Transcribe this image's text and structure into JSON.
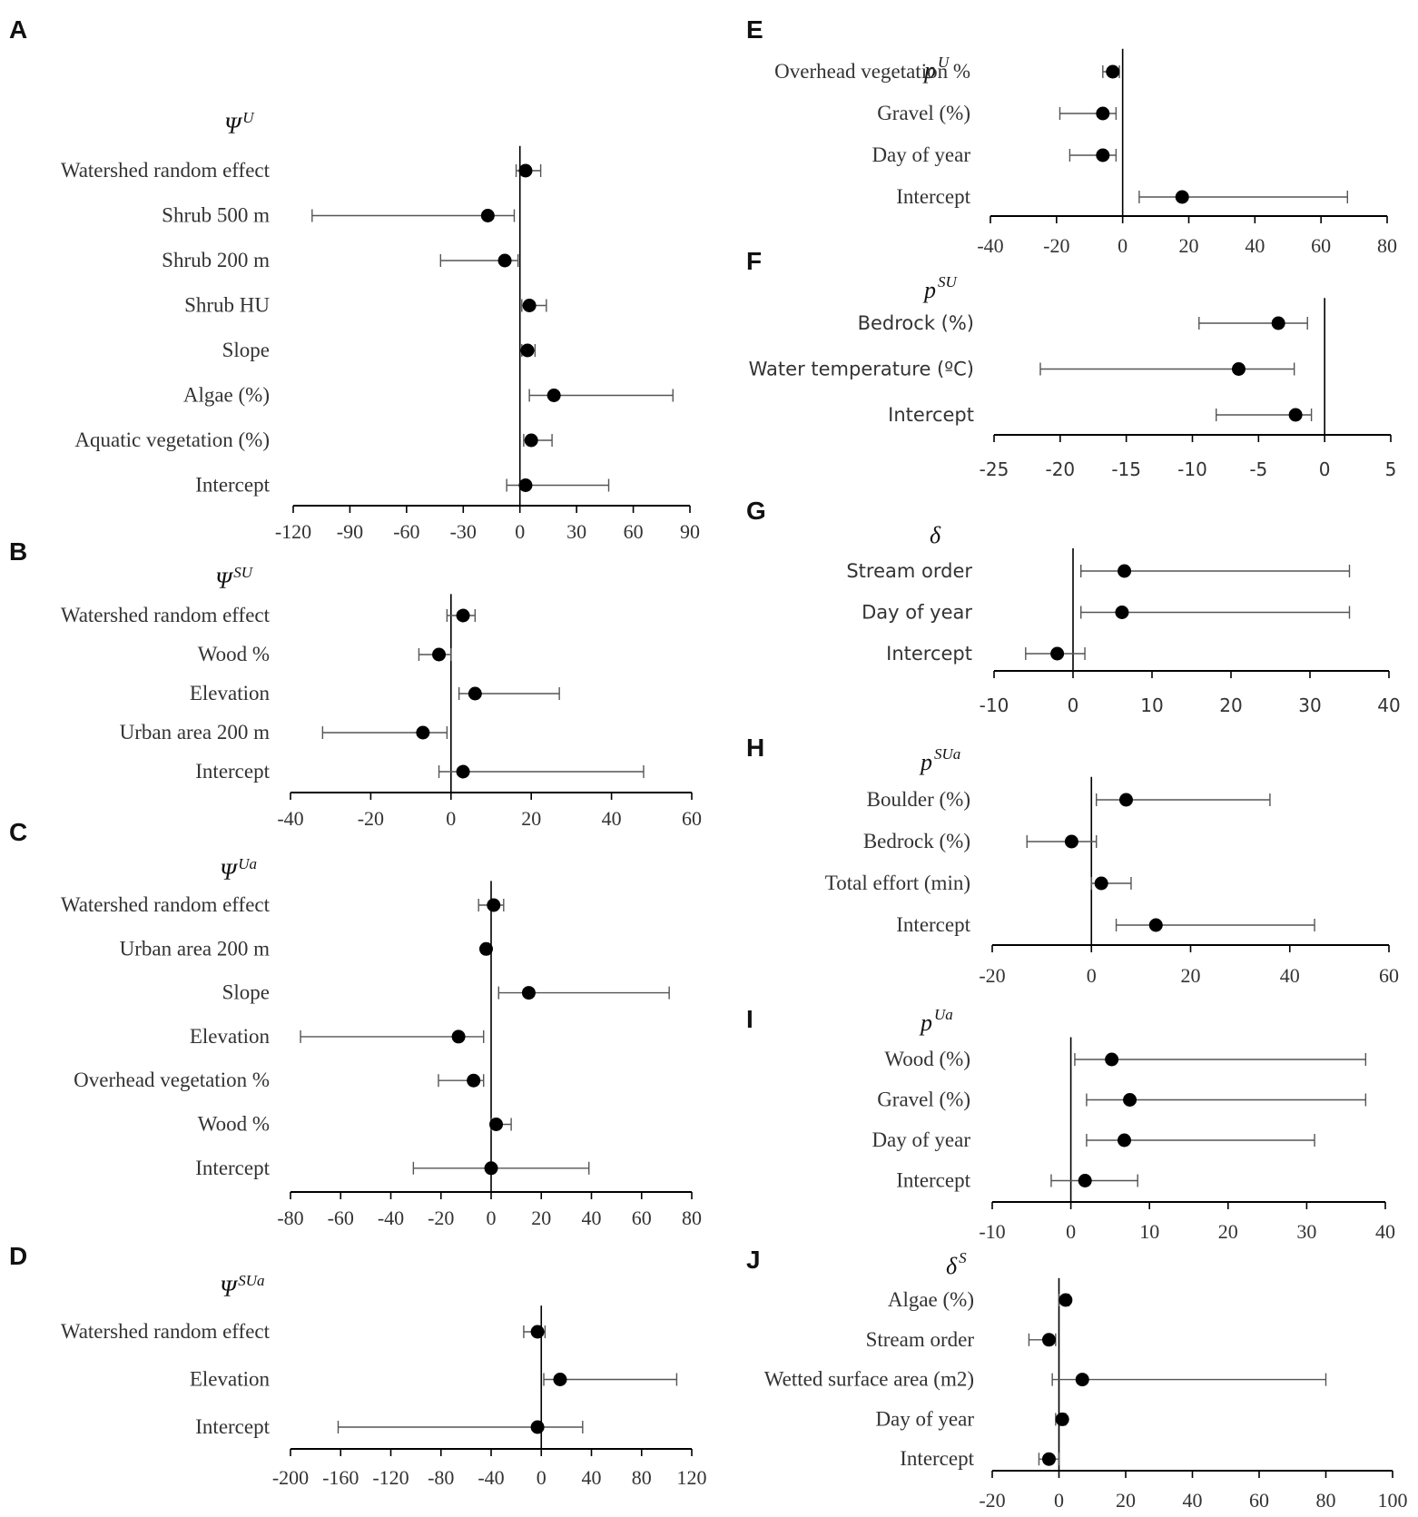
{
  "chart_data": [
    {
      "id": "A",
      "type": "coefficient",
      "letter": "A",
      "title": "Ψ",
      "title_sup": "U",
      "font": "serif",
      "xlim": [
        -120,
        90
      ],
      "ticks": [
        -120,
        -90,
        -60,
        -30,
        0,
        30,
        60,
        90
      ],
      "tick_labels": [
        "-120",
        "-90",
        "-60",
        "-30",
        "0",
        "30",
        "60",
        "90"
      ],
      "rows": [
        {
          "label": "Watershed random effect",
          "estimate": 3,
          "lower": -2,
          "upper": 11
        },
        {
          "label": "Shrub 500 m",
          "estimate": -17,
          "lower": -110,
          "upper": -3
        },
        {
          "label": "Shrub 200 m",
          "estimate": -8,
          "lower": -42,
          "upper": -1
        },
        {
          "label": "Shrub HU",
          "estimate": 5,
          "lower": 1,
          "upper": 14
        },
        {
          "label": "Slope",
          "estimate": 4,
          "lower": 1,
          "upper": 8
        },
        {
          "label": "Algae (%)",
          "estimate": 18,
          "lower": 5,
          "upper": 81
        },
        {
          "label": "Aquatic vegetation (%)",
          "estimate": 6,
          "lower": 2,
          "upper": 17
        },
        {
          "label": "Intercept",
          "estimate": 3,
          "lower": -7,
          "upper": 47
        }
      ]
    },
    {
      "id": "B",
      "type": "coefficient",
      "letter": "B",
      "title": "Ψ",
      "title_sup": "SU",
      "font": "serif",
      "xlim": [
        -40,
        60
      ],
      "ticks": [
        -40,
        -20,
        0,
        20,
        40,
        60
      ],
      "tick_labels": [
        "-40",
        "-20",
        "0",
        "20",
        "40",
        "60"
      ],
      "rows": [
        {
          "label": "Watershed random effect",
          "estimate": 3,
          "lower": -1,
          "upper": 6
        },
        {
          "label": "Wood %",
          "estimate": -3,
          "lower": -8,
          "upper": 0
        },
        {
          "label": "Elevation",
          "estimate": 6,
          "lower": 2,
          "upper": 27
        },
        {
          "label": "Urban area 200 m",
          "estimate": -7,
          "lower": -32,
          "upper": -1
        },
        {
          "label": "Intercept",
          "estimate": 3,
          "lower": -3,
          "upper": 48
        }
      ]
    },
    {
      "id": "C",
      "type": "coefficient",
      "letter": "C",
      "title": "Ψ",
      "title_sup": "Ua",
      "font": "serif",
      "xlim": [
        -80,
        80
      ],
      "ticks": [
        -80,
        -60,
        -40,
        -20,
        0,
        20,
        40,
        60,
        80
      ],
      "tick_labels": [
        "-80",
        "-60",
        "-40",
        "-20",
        "0",
        "20",
        "40",
        "60",
        "80"
      ],
      "rows": [
        {
          "label": "Watershed random effect",
          "estimate": 1,
          "lower": -5,
          "upper": 5
        },
        {
          "label": "Urban area 200 m",
          "estimate": -2,
          "lower": -3,
          "upper": -1
        },
        {
          "label": "Slope",
          "estimate": 15,
          "lower": 3,
          "upper": 71
        },
        {
          "label": "Elevation",
          "estimate": -13,
          "lower": -76,
          "upper": -3
        },
        {
          "label": "Overhead vegetation %",
          "estimate": -7,
          "lower": -21,
          "upper": -3
        },
        {
          "label": "Wood %",
          "estimate": 2,
          "lower": 0,
          "upper": 8
        },
        {
          "label": "Intercept",
          "estimate": 0,
          "lower": -31,
          "upper": 39
        }
      ]
    },
    {
      "id": "D",
      "type": "coefficient",
      "letter": "D",
      "title": "Ψ",
      "title_sup": "SUa",
      "font": "serif",
      "xlim": [
        -200,
        120
      ],
      "ticks": [
        -200,
        -160,
        -120,
        -80,
        -40,
        0,
        40,
        80,
        120
      ],
      "tick_labels": [
        "-200",
        "-160",
        "-120",
        "-80",
        "-40",
        "0",
        "40",
        "80",
        "120"
      ],
      "rows": [
        {
          "label": "Watershed random effect",
          "estimate": -3,
          "lower": -14,
          "upper": 3
        },
        {
          "label": "Elevation",
          "estimate": 15,
          "lower": 2,
          "upper": 108
        },
        {
          "label": "Intercept",
          "estimate": -3,
          "lower": -162,
          "upper": 33
        }
      ]
    },
    {
      "id": "E",
      "type": "coefficient",
      "letter": "E",
      "title": "p",
      "title_sup": "U",
      "font": "serif",
      "xlim": [
        -40,
        80
      ],
      "ticks": [
        -40,
        -20,
        0,
        20,
        40,
        60,
        80
      ],
      "tick_labels": [
        "-40",
        "-20",
        "0",
        "20",
        "40",
        "60",
        "80"
      ],
      "rows": [
        {
          "label": "Overhead vegetation %",
          "estimate": -3,
          "lower": -6,
          "upper": -1
        },
        {
          "label": "Gravel (%)",
          "estimate": -6,
          "lower": -19,
          "upper": -2
        },
        {
          "label": "Day of year",
          "estimate": -6,
          "lower": -16,
          "upper": -2
        },
        {
          "label": "Intercept",
          "estimate": 18,
          "lower": 5,
          "upper": 68
        }
      ]
    },
    {
      "id": "F",
      "type": "coefficient",
      "letter": "F",
      "title": "p",
      "title_sup": "SU",
      "font": "sans",
      "xlim": [
        -25,
        5
      ],
      "ticks": [
        -25,
        -20,
        -15,
        -10,
        -5,
        0,
        5
      ],
      "tick_labels": [
        "-25",
        "-20",
        "-15",
        "-10",
        "-5",
        "0",
        "5"
      ],
      "rows": [
        {
          "label": "Bedrock (%)",
          "estimate": -3.5,
          "lower": -9.5,
          "upper": -1.3
        },
        {
          "label": "Water temperature (ºC)",
          "estimate": -6.5,
          "lower": -21.5,
          "upper": -2.3
        },
        {
          "label": "Intercept",
          "estimate": -2.2,
          "lower": -8.2,
          "upper": -1.0
        }
      ]
    },
    {
      "id": "G",
      "type": "coefficient",
      "letter": "G",
      "title": "δ",
      "title_sup": "",
      "font": "sans",
      "xlim": [
        -10,
        40
      ],
      "ticks": [
        -10,
        0,
        10,
        20,
        30,
        40
      ],
      "tick_labels": [
        "-10",
        "0",
        "10",
        "20",
        "30",
        "40"
      ],
      "rows": [
        {
          "label": "Stream order",
          "estimate": 6.5,
          "lower": 1,
          "upper": 35
        },
        {
          "label": "Day of year",
          "estimate": 6.2,
          "lower": 1,
          "upper": 35
        },
        {
          "label": "Intercept",
          "estimate": -2,
          "lower": -6,
          "upper": 1.5
        }
      ]
    },
    {
      "id": "H",
      "type": "coefficient",
      "letter": "H",
      "title": "p",
      "title_sup": "SUa",
      "font": "serif",
      "xlim": [
        -20,
        60
      ],
      "ticks": [
        -20,
        0,
        20,
        40,
        60
      ],
      "tick_labels": [
        "-20",
        "0",
        "20",
        "40",
        "60"
      ],
      "rows": [
        {
          "label": "Boulder (%)",
          "estimate": 7,
          "lower": 1,
          "upper": 36
        },
        {
          "label": "Bedrock (%)",
          "estimate": -4,
          "lower": -13,
          "upper": 1
        },
        {
          "label": "Total effort (min)",
          "estimate": 2,
          "lower": 0,
          "upper": 8
        },
        {
          "label": "Intercept",
          "estimate": 13,
          "lower": 5,
          "upper": 45
        }
      ]
    },
    {
      "id": "I",
      "type": "coefficient",
      "letter": "I",
      "title": "p",
      "title_sup": "Ua",
      "font": "serif",
      "xlim": [
        -10,
        40
      ],
      "ticks": [
        -10,
        0,
        10,
        20,
        30,
        40
      ],
      "tick_labels": [
        "-10",
        "0",
        "10",
        "20",
        "30",
        "40"
      ],
      "rows": [
        {
          "label": "Wood (%)",
          "estimate": 5.2,
          "lower": 0.5,
          "upper": 37.5
        },
        {
          "label": "Gravel (%)",
          "estimate": 7.5,
          "lower": 2,
          "upper": 37.5
        },
        {
          "label": "Day of year",
          "estimate": 6.8,
          "lower": 2,
          "upper": 31
        },
        {
          "label": "Intercept",
          "estimate": 1.8,
          "lower": -2.5,
          "upper": 8.5
        }
      ]
    },
    {
      "id": "J",
      "type": "coefficient",
      "letter": "J",
      "title": "δ",
      "title_sup": "S",
      "font": "serif",
      "xlim": [
        -20,
        100
      ],
      "ticks": [
        -20,
        0,
        20,
        40,
        60,
        80,
        100
      ],
      "tick_labels": [
        "-20",
        "0",
        "20",
        "40",
        "60",
        "80",
        "100"
      ],
      "rows": [
        {
          "label": "Algae (%)",
          "estimate": 2,
          "lower": 0,
          "upper": 3
        },
        {
          "label": "Stream order",
          "estimate": -3,
          "lower": -9,
          "upper": -1
        },
        {
          "label": "Wetted surface area (m2)",
          "estimate": 7,
          "lower": -2,
          "upper": 80
        },
        {
          "label": "Day of year",
          "estimate": 1,
          "lower": -1,
          "upper": 2
        },
        {
          "label": "Intercept",
          "estimate": -3,
          "lower": -6,
          "upper": 0
        }
      ]
    }
  ]
}
